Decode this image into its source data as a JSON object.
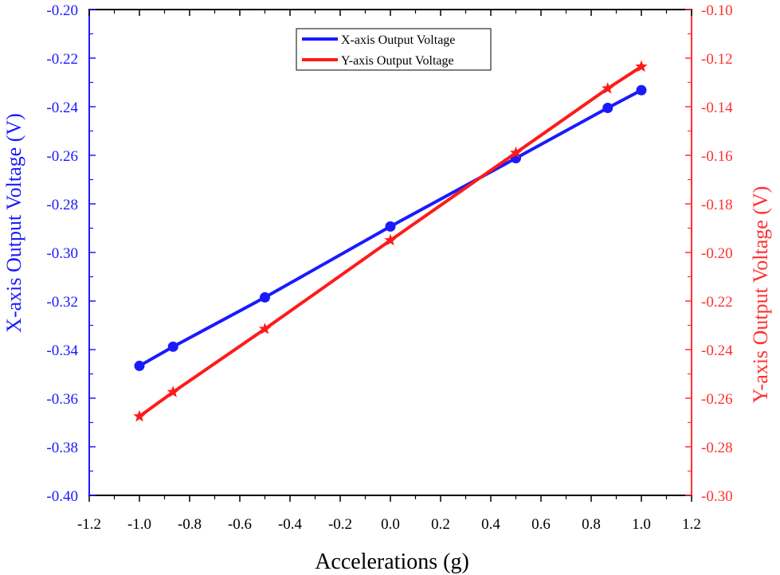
{
  "chart_data": {
    "type": "line",
    "xlabel": "Accelerations (g)",
    "ylabel_left": "X-axis Output Voltage (V)",
    "ylabel_right": "Y-axis Output Voltage (V)",
    "xlim": [
      -1.2,
      1.2
    ],
    "xticks": [
      "-1.2",
      "-1.0",
      "-0.8",
      "-0.6",
      "-0.4",
      "-0.2",
      "0.0",
      "0.2",
      "0.4",
      "0.6",
      "0.8",
      "1.0",
      "1.2"
    ],
    "ylim_left": [
      -0.4,
      -0.2
    ],
    "yticks_left": [
      "-0.20",
      "-0.22",
      "-0.24",
      "-0.26",
      "-0.28",
      "-0.30",
      "-0.32",
      "-0.34",
      "-0.36",
      "-0.38",
      "-0.40"
    ],
    "ylim_right": [
      -0.3,
      -0.1
    ],
    "yticks_right": [
      "-0.10",
      "-0.12",
      "-0.14",
      "-0.16",
      "-0.18",
      "-0.20",
      "-0.22",
      "-0.24",
      "-0.26",
      "-0.28",
      "-0.30"
    ],
    "grid": false,
    "legend_position": "top-center",
    "series": [
      {
        "name": "X-axis Output Voltage",
        "axis": "left",
        "color": "#1a1aff",
        "marker": "circle",
        "x": [
          -1.0,
          -0.866,
          -0.5,
          0.0,
          0.5,
          0.866,
          1.0
        ],
        "y": [
          -0.3467,
          -0.3388,
          -0.3185,
          -0.2893,
          -0.2612,
          -0.2405,
          -0.2332
        ]
      },
      {
        "name": "Y-axis Output Voltage",
        "axis": "right",
        "color": "#ff1a1a",
        "marker": "star",
        "x": [
          -1.0,
          -0.866,
          -0.5,
          0.0,
          0.5,
          0.866,
          1.0
        ],
        "y": [
          -0.2675,
          -0.2575,
          -0.2315,
          -0.195,
          -0.159,
          -0.1325,
          -0.1235
        ]
      }
    ]
  }
}
